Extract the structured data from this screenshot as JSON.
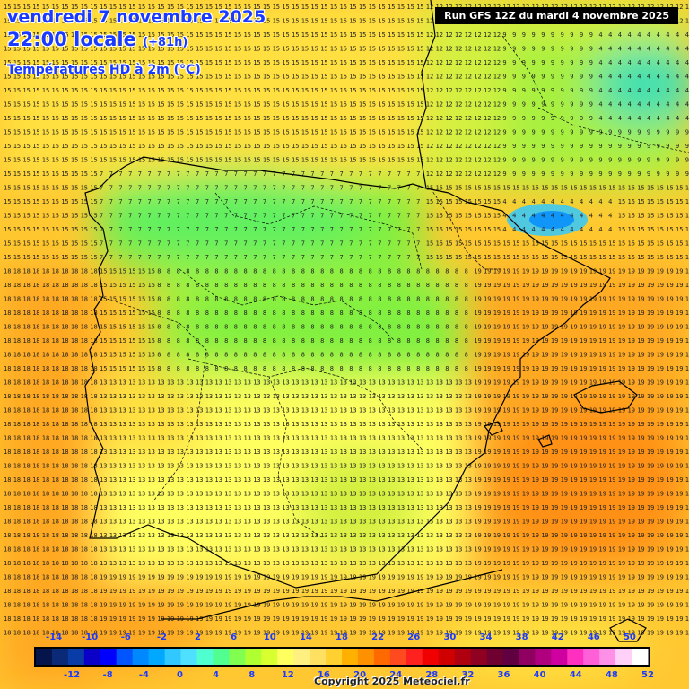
{
  "header": {
    "date": "vendredi 7 novembre 2025",
    "time": "22:00 locale",
    "lead": "(+81h)",
    "variable": "Températures HD à 2m (°C)",
    "run": "Run GFS 12Z du mardi 4 novembre 2025"
  },
  "footer": {
    "copyright": "Copyright 2025 Meteociel.fr"
  },
  "legend": {
    "labels_top": [
      "-14",
      "-10",
      "-6",
      "-2",
      "2",
      "6",
      "10",
      "14",
      "18",
      "22",
      "26",
      "30",
      "34",
      "38",
      "42",
      "46",
      "50"
    ],
    "labels_bottom": [
      "-12",
      "-8",
      "-4",
      "0",
      "4",
      "8",
      "12",
      "16",
      "20",
      "24",
      "28",
      "32",
      "36",
      "40",
      "44",
      "48",
      "52"
    ],
    "colors": [
      "#05144a",
      "#0a2a78",
      "#0a3ca8",
      "#0a00c8",
      "#0000ff",
      "#0055ff",
      "#0088ff",
      "#00a8ff",
      "#30c8ff",
      "#50e0ff",
      "#50ffd0",
      "#50ff90",
      "#80ff50",
      "#b0ff30",
      "#d8ff30",
      "#ffff60",
      "#fff080",
      "#ffe060",
      "#ffd030",
      "#ffb000",
      "#ff9000",
      "#ff6a00",
      "#ff4a20",
      "#ff2020",
      "#f00000",
      "#d00000",
      "#b00010",
      "#900020",
      "#700030",
      "#600040",
      "#900060",
      "#b00080",
      "#d000a0",
      "#ff30c0",
      "#ff60d8",
      "#ff90e8",
      "#ffd0f8",
      "#ffffff"
    ]
  },
  "map": {
    "colors": {
      "c3": "#40e0b0",
      "c5": "#60f060",
      "c7": "#80f040",
      "c9": "#a8f040",
      "c11": "#d4f040",
      "c13": "#ffff60",
      "c15": "#ffe040",
      "c17": "#ffc830",
      "c19": "#ffa820",
      "c20": "#ff9018"
    },
    "regions": [
      {
        "id": "north-sea",
        "value": 15,
        "x1": 0,
        "y1": 0,
        "x2": 470,
        "y2": 200
      },
      {
        "id": "biscay-east",
        "value": 12,
        "x1": 470,
        "y1": 0,
        "x2": 768,
        "y2": 210
      },
      {
        "id": "france-se",
        "value": 9,
        "x1": 560,
        "y1": 40,
        "x2": 768,
        "y2": 200
      },
      {
        "id": "alps",
        "value": 4,
        "x1": 660,
        "y1": 40,
        "x2": 768,
        "y2": 140
      },
      {
        "id": "pyrenees",
        "value": 4,
        "x1": 560,
        "y1": 220,
        "x2": 680,
        "y2": 270
      },
      {
        "id": "iberia-north",
        "value": 7,
        "x1": 110,
        "y1": 190,
        "x2": 470,
        "y2": 300
      },
      {
        "id": "iberia-central",
        "value": 8,
        "x1": 170,
        "y1": 300,
        "x2": 520,
        "y2": 420
      },
      {
        "id": "iberia-south",
        "value": 13,
        "x1": 110,
        "y1": 420,
        "x2": 540,
        "y2": 640
      },
      {
        "id": "mediterranean",
        "value": 19,
        "x1": 520,
        "y1": 300,
        "x2": 768,
        "y2": 640
      },
      {
        "id": "atlantic-sw",
        "value": 18,
        "x1": 0,
        "y1": 300,
        "x2": 110,
        "y2": 768
      },
      {
        "id": "africa",
        "value": 19,
        "x1": 110,
        "y1": 640,
        "x2": 768,
        "y2": 768
      }
    ]
  }
}
